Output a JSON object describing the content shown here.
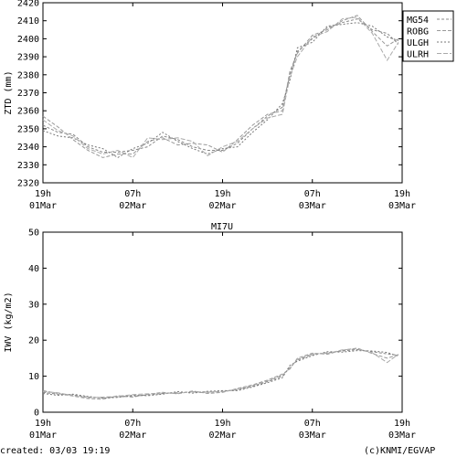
{
  "chart_data": [
    {
      "type": "line",
      "title": "",
      "ylabel": "ZTD (mm)",
      "ylim": [
        2320,
        2420
      ],
      "yticks": [
        2320,
        2330,
        2340,
        2350,
        2360,
        2370,
        2380,
        2390,
        2400,
        2410,
        2420
      ],
      "xlim": [
        0,
        48
      ],
      "xticks": [
        {
          "h": 0,
          "line1": "19h",
          "line2": "01Mar"
        },
        {
          "h": 12,
          "line1": "07h",
          "line2": "02Mar"
        },
        {
          "h": 24,
          "line1": "19h",
          "line2": "02Mar"
        },
        {
          "h": 36,
          "line1": "07h",
          "line2": "03Mar"
        },
        {
          "h": 48,
          "line1": "19h",
          "line2": "03Mar"
        }
      ],
      "legend_position": "right",
      "grid": false,
      "series": [
        {
          "name": "MG54",
          "color": "#888888",
          "x": [
            0,
            2,
            4,
            6,
            8,
            10,
            12,
            14,
            16,
            18,
            20,
            22,
            24,
            26,
            28,
            30,
            32,
            33,
            34,
            36,
            38,
            40,
            42,
            44,
            46,
            47.5
          ],
          "y": [
            2352,
            2348,
            2347,
            2340,
            2337,
            2337,
            2338,
            2340,
            2346,
            2344,
            2340,
            2338,
            2338,
            2342,
            2350,
            2357,
            2362,
            2380,
            2393,
            2400,
            2406,
            2409,
            2411,
            2405,
            2403,
            2397
          ]
        },
        {
          "name": "ROBG",
          "color": "#999999",
          "x": [
            0,
            2,
            4,
            6,
            8,
            10,
            12,
            14,
            16,
            18,
            20,
            22,
            24,
            26,
            28,
            30,
            32,
            33,
            34,
            36,
            38,
            40,
            42,
            44,
            46,
            47.5
          ],
          "y": [
            2357,
            2351,
            2344,
            2338,
            2334,
            2336,
            2336,
            2343,
            2345,
            2341,
            2342,
            2341,
            2337,
            2344,
            2352,
            2358,
            2360,
            2382,
            2392,
            2402,
            2405,
            2410,
            2413,
            2404,
            2396,
            2400
          ]
        },
        {
          "name": "ULGH",
          "color": "#777777",
          "x": [
            0,
            2,
            4,
            6,
            8,
            10,
            12,
            14,
            16,
            18,
            20,
            22,
            24,
            26,
            28,
            30,
            32,
            33,
            34,
            36,
            38,
            40,
            42,
            44,
            46,
            47.5
          ],
          "y": [
            2349,
            2346,
            2345,
            2341,
            2339,
            2334,
            2339,
            2342,
            2348,
            2343,
            2339,
            2336,
            2339,
            2340,
            2348,
            2355,
            2364,
            2377,
            2395,
            2398,
            2407,
            2408,
            2409,
            2407,
            2401,
            2399
          ]
        },
        {
          "name": "ULRH",
          "color": "#aaaaaa",
          "x": [
            0,
            2,
            4,
            6,
            8,
            10,
            12,
            14,
            16,
            18,
            20,
            22,
            24,
            26,
            28,
            30,
            32,
            33,
            34,
            36,
            38,
            40,
            42,
            44,
            46,
            47.5
          ],
          "y": [
            2355,
            2349,
            2346,
            2339,
            2336,
            2338,
            2334,
            2345,
            2344,
            2345,
            2343,
            2335,
            2340,
            2343,
            2350,
            2356,
            2358,
            2379,
            2390,
            2401,
            2404,
            2411,
            2412,
            2403,
            2388,
            2398
          ]
        }
      ]
    },
    {
      "type": "line",
      "title": "MI7U",
      "ylabel": "IWV (kg/m2)",
      "ylim": [
        0,
        50
      ],
      "yticks": [
        0,
        10,
        20,
        30,
        40,
        50
      ],
      "xlim": [
        0,
        48
      ],
      "xticks": [
        {
          "h": 0,
          "line1": "19h",
          "line2": "01Mar"
        },
        {
          "h": 12,
          "line1": "07h",
          "line2": "02Mar"
        },
        {
          "h": 24,
          "line1": "19h",
          "line2": "02Mar"
        },
        {
          "h": 36,
          "line1": "07h",
          "line2": "03Mar"
        },
        {
          "h": 48,
          "line1": "19h",
          "line2": "03Mar"
        }
      ],
      "grid": false,
      "series": [
        {
          "color": "#888888",
          "x": [
            0,
            2,
            4,
            6,
            8,
            10,
            12,
            14,
            16,
            18,
            20,
            22,
            24,
            26,
            28,
            30,
            32,
            33,
            34,
            36,
            38,
            40,
            42,
            44,
            46,
            47.5
          ],
          "y": [
            5.5,
            5,
            4.8,
            4.2,
            4,
            4.3,
            4.5,
            4.8,
            5.2,
            5.4,
            5.6,
            5.5,
            5.8,
            6.2,
            7.2,
            8.5,
            10,
            12.5,
            14.5,
            16,
            16.5,
            17,
            17.4,
            16.8,
            16.2,
            15.8
          ]
        },
        {
          "color": "#999999",
          "x": [
            0,
            2,
            4,
            6,
            8,
            10,
            12,
            14,
            16,
            18,
            20,
            22,
            24,
            26,
            28,
            30,
            32,
            33,
            34,
            36,
            38,
            40,
            42,
            44,
            46,
            47.5
          ],
          "y": [
            6,
            5.2,
            4.5,
            3.8,
            3.6,
            4.6,
            4.2,
            5,
            5.5,
            5.1,
            5.9,
            5.2,
            5.5,
            6.6,
            7.6,
            8.9,
            10.6,
            12,
            15,
            16.4,
            16.1,
            17.2,
            17.8,
            16.3,
            15,
            16
          ]
        },
        {
          "color": "#777777",
          "x": [
            0,
            2,
            4,
            6,
            8,
            10,
            12,
            14,
            16,
            18,
            20,
            22,
            24,
            26,
            28,
            30,
            32,
            33,
            34,
            36,
            38,
            40,
            42,
            44,
            46,
            47.5
          ],
          "y": [
            5.2,
            4.7,
            5,
            4.4,
            3.9,
            4.1,
            4.7,
            4.6,
            5,
            5.7,
            5.3,
            5.8,
            6,
            6,
            7,
            8.2,
            9.6,
            13,
            14.2,
            15.7,
            16.8,
            16.7,
            17.1,
            17,
            16.6,
            15.5
          ]
        },
        {
          "color": "#aaaaaa",
          "x": [
            0,
            2,
            4,
            6,
            8,
            10,
            12,
            14,
            16,
            18,
            20,
            22,
            24,
            26,
            28,
            30,
            32,
            33,
            34,
            36,
            38,
            40,
            42,
            44,
            46,
            47.5
          ],
          "y": [
            5.7,
            5.4,
            4.6,
            4,
            4.2,
            4.4,
            4.9,
            5.1,
            5.3,
            5.2,
            5.7,
            5.6,
            5.7,
            6.4,
            7.4,
            8.7,
            10.3,
            12.2,
            14.7,
            16.2,
            16.3,
            17.3,
            17.6,
            16.5,
            13.8,
            16.1
          ]
        }
      ]
    }
  ],
  "footer": {
    "created": "created: 03/03 19:19",
    "credit": "(c)KNMI/EGVAP"
  }
}
